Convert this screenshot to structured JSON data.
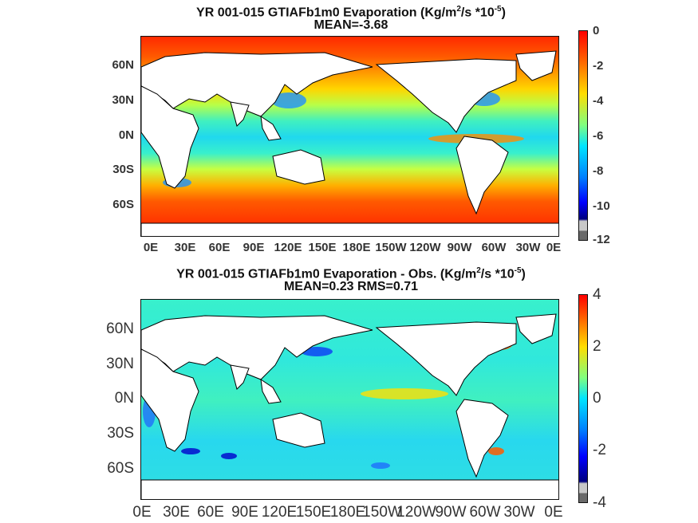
{
  "panels": [
    {
      "title_main": "YR 001-015 GTIAFb1m0  Evaporation (Kg/m",
      "title_sup1": "2",
      "title_mid": "/s *10",
      "title_sup2": "-5",
      "title_end": ")",
      "subtitle": "MEAN=-3.68",
      "lat_ticks": [
        "60N",
        "30N",
        "0N",
        "30S",
        "60S"
      ],
      "lon_ticks": [
        "0E",
        "30E",
        "60E",
        "90E",
        "120E",
        "150E",
        "180E",
        "150W",
        "120W",
        "90W",
        "60W",
        "30W",
        "0E"
      ],
      "colorbar_ticks": [
        "0",
        "-2",
        "-4",
        "-6",
        "-8",
        "-10",
        "-12"
      ],
      "colorbar_range": [
        -12,
        0
      ]
    },
    {
      "title_main": "YR 001-015 GTIAFb1m0 Evaporation - Obs. (Kg/m",
      "title_sup1": "2",
      "title_mid": "/s *10",
      "title_sup2": "-5",
      "title_end": ")",
      "subtitle": "MEAN=0.23   RMS=0.71",
      "lat_ticks": [
        "60N",
        "30N",
        "0N",
        "30S",
        "60S"
      ],
      "lon_ticks": [
        "0E",
        "30E",
        "60E",
        "90E",
        "120E",
        "150E",
        "180E",
        "150W",
        "120W",
        "90W",
        "60W",
        "30W",
        "0E"
      ],
      "colorbar_ticks": [
        "4",
        "2",
        "0",
        "-2",
        "-4"
      ],
      "colorbar_range": [
        -4,
        4
      ]
    }
  ],
  "colors": {
    "land": "#ffffff",
    "coast": "#000000",
    "jet": [
      "#7f0000",
      "#ff0000",
      "#ff7f00",
      "#ffff00",
      "#7fff7f",
      "#00ffff",
      "#007fff",
      "#0000ff",
      "#00007f"
    ]
  }
}
